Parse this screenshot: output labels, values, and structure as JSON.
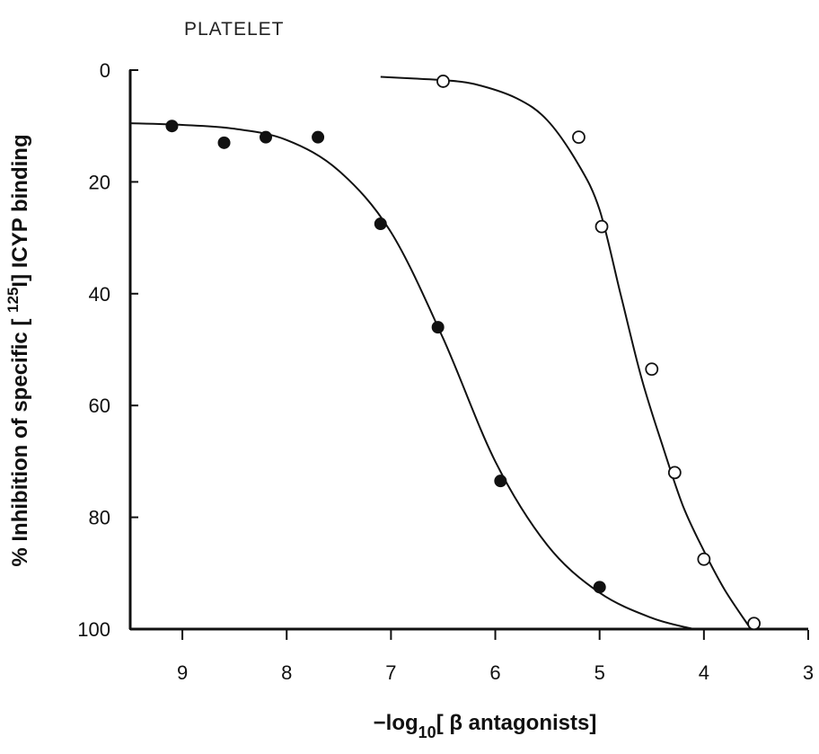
{
  "chart_data": {
    "type": "scatter",
    "title": "PLATELET",
    "xlabel": {
      "prefix": "−log",
      "sub": "10",
      "suffix": "[ β antagonists]"
    },
    "ylabel": {
      "prefix": "% Inhibition of specific [ ",
      "sup": "125",
      "suffix": "I] ICYP binding"
    },
    "x_axis": {
      "reversed": true,
      "lim": [
        9.5,
        3
      ],
      "ticks": [
        9,
        8,
        7,
        6,
        5,
        4,
        3
      ]
    },
    "y_axis": {
      "reversed": true,
      "lim": [
        0,
        100
      ],
      "ticks": [
        0,
        20,
        40,
        60,
        80,
        100
      ]
    },
    "grid": false,
    "series": [
      {
        "marker": "filled-circle",
        "points": [
          {
            "x": 9.1,
            "y": 10
          },
          {
            "x": 8.6,
            "y": 13
          },
          {
            "x": 8.2,
            "y": 12
          },
          {
            "x": 7.7,
            "y": 12
          },
          {
            "x": 7.1,
            "y": 27.5
          },
          {
            "x": 6.55,
            "y": 46
          },
          {
            "x": 5.95,
            "y": 73.5
          },
          {
            "x": 5.0,
            "y": 92.5
          }
        ],
        "fit_curve": [
          {
            "x": 9.5,
            "y": 9.5
          },
          {
            "x": 9.0,
            "y": 9.8
          },
          {
            "x": 8.5,
            "y": 10.5
          },
          {
            "x": 8.0,
            "y": 12.5
          },
          {
            "x": 7.5,
            "y": 18
          },
          {
            "x": 7.0,
            "y": 29
          },
          {
            "x": 6.5,
            "y": 48
          },
          {
            "x": 6.0,
            "y": 70
          },
          {
            "x": 5.5,
            "y": 85
          },
          {
            "x": 5.0,
            "y": 93.5
          },
          {
            "x": 4.5,
            "y": 98
          },
          {
            "x": 4.1,
            "y": 100
          }
        ]
      },
      {
        "marker": "open-circle",
        "points": [
          {
            "x": 6.5,
            "y": 2
          },
          {
            "x": 5.2,
            "y": 12
          },
          {
            "x": 4.98,
            "y": 28
          },
          {
            "x": 4.5,
            "y": 53.5
          },
          {
            "x": 4.28,
            "y": 72
          },
          {
            "x": 4.0,
            "y": 87.5
          },
          {
            "x": 3.52,
            "y": 99
          }
        ],
        "fit_curve": [
          {
            "x": 7.1,
            "y": 1.2
          },
          {
            "x": 6.8,
            "y": 1.5
          },
          {
            "x": 6.5,
            "y": 1.8
          },
          {
            "x": 6.2,
            "y": 2.5
          },
          {
            "x": 5.8,
            "y": 5
          },
          {
            "x": 5.5,
            "y": 9
          },
          {
            "x": 5.2,
            "y": 17
          },
          {
            "x": 5.0,
            "y": 25
          },
          {
            "x": 4.8,
            "y": 40
          },
          {
            "x": 4.6,
            "y": 55
          },
          {
            "x": 4.4,
            "y": 67
          },
          {
            "x": 4.2,
            "y": 78
          },
          {
            "x": 4.0,
            "y": 86
          },
          {
            "x": 3.8,
            "y": 93
          },
          {
            "x": 3.55,
            "y": 100
          }
        ]
      }
    ]
  }
}
